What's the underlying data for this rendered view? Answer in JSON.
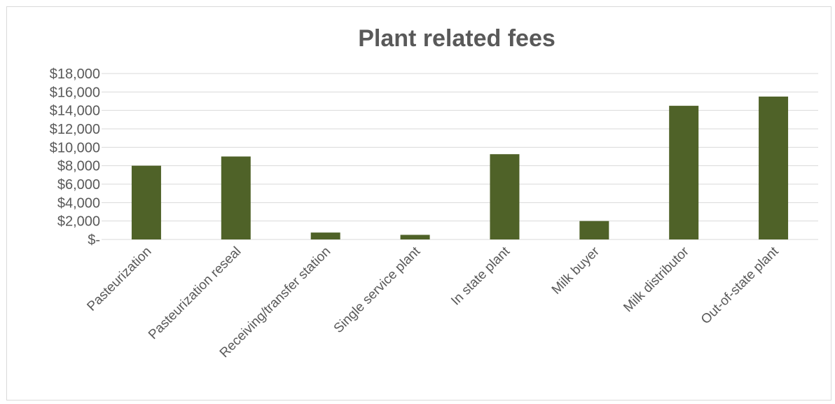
{
  "chart_data": {
    "type": "bar",
    "title": "Plant related fees",
    "categories": [
      "Pasteurization",
      "Pasteurization reseal",
      "Receiving/transfer station",
      "Single service plant",
      "In state plant",
      "Milk buyer",
      "Milk distributor",
      "Out-of-state plant"
    ],
    "values": [
      8000,
      9000,
      750,
      500,
      9250,
      2000,
      14500,
      15500
    ],
    "ylim": [
      0,
      18000
    ],
    "yticks": [
      0,
      2000,
      4000,
      6000,
      8000,
      10000,
      12000,
      14000,
      16000,
      18000
    ],
    "ytick_labels": [
      "$-",
      "$2,000",
      "$4,000",
      "$6,000",
      "$8,000",
      "$10,000",
      "$12,000",
      "$14,000",
      "$16,000",
      "$18,000"
    ],
    "grid": true,
    "legend": "none",
    "bar_color": "#4f6228"
  }
}
